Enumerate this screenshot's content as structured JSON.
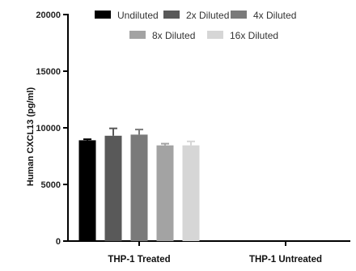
{
  "chart_data": {
    "type": "bar",
    "ylabel": "Human CXCL13 (pg/ml)",
    "ylim": [
      0,
      20000
    ],
    "yticks": [
      "0",
      "5000",
      "10000",
      "15000",
      "20000"
    ],
    "ytick_values": [
      0,
      5000,
      10000,
      15000,
      20000
    ],
    "categories": [
      "THP-1 Treated",
      "THP-1 Untreated"
    ],
    "legend_position": "top",
    "series": [
      {
        "name": "Undiluted",
        "color": "#000000",
        "values": [
          8900,
          0
        ],
        "error": [
          90,
          0
        ]
      },
      {
        "name": "2x Diluted",
        "color": "#595959",
        "values": [
          9300,
          0
        ],
        "error": [
          650,
          0
        ]
      },
      {
        "name": "4x Diluted",
        "color": "#7a7a7a",
        "values": [
          9400,
          0
        ],
        "error": [
          450,
          0
        ]
      },
      {
        "name": "8x Diluted",
        "color": "#a3a3a3",
        "values": [
          8450,
          0
        ],
        "error": [
          150,
          0
        ]
      },
      {
        "name": "16x Diluted",
        "color": "#d6d6d6",
        "values": [
          8450,
          0
        ],
        "error": [
          350,
          0
        ]
      }
    ]
  }
}
